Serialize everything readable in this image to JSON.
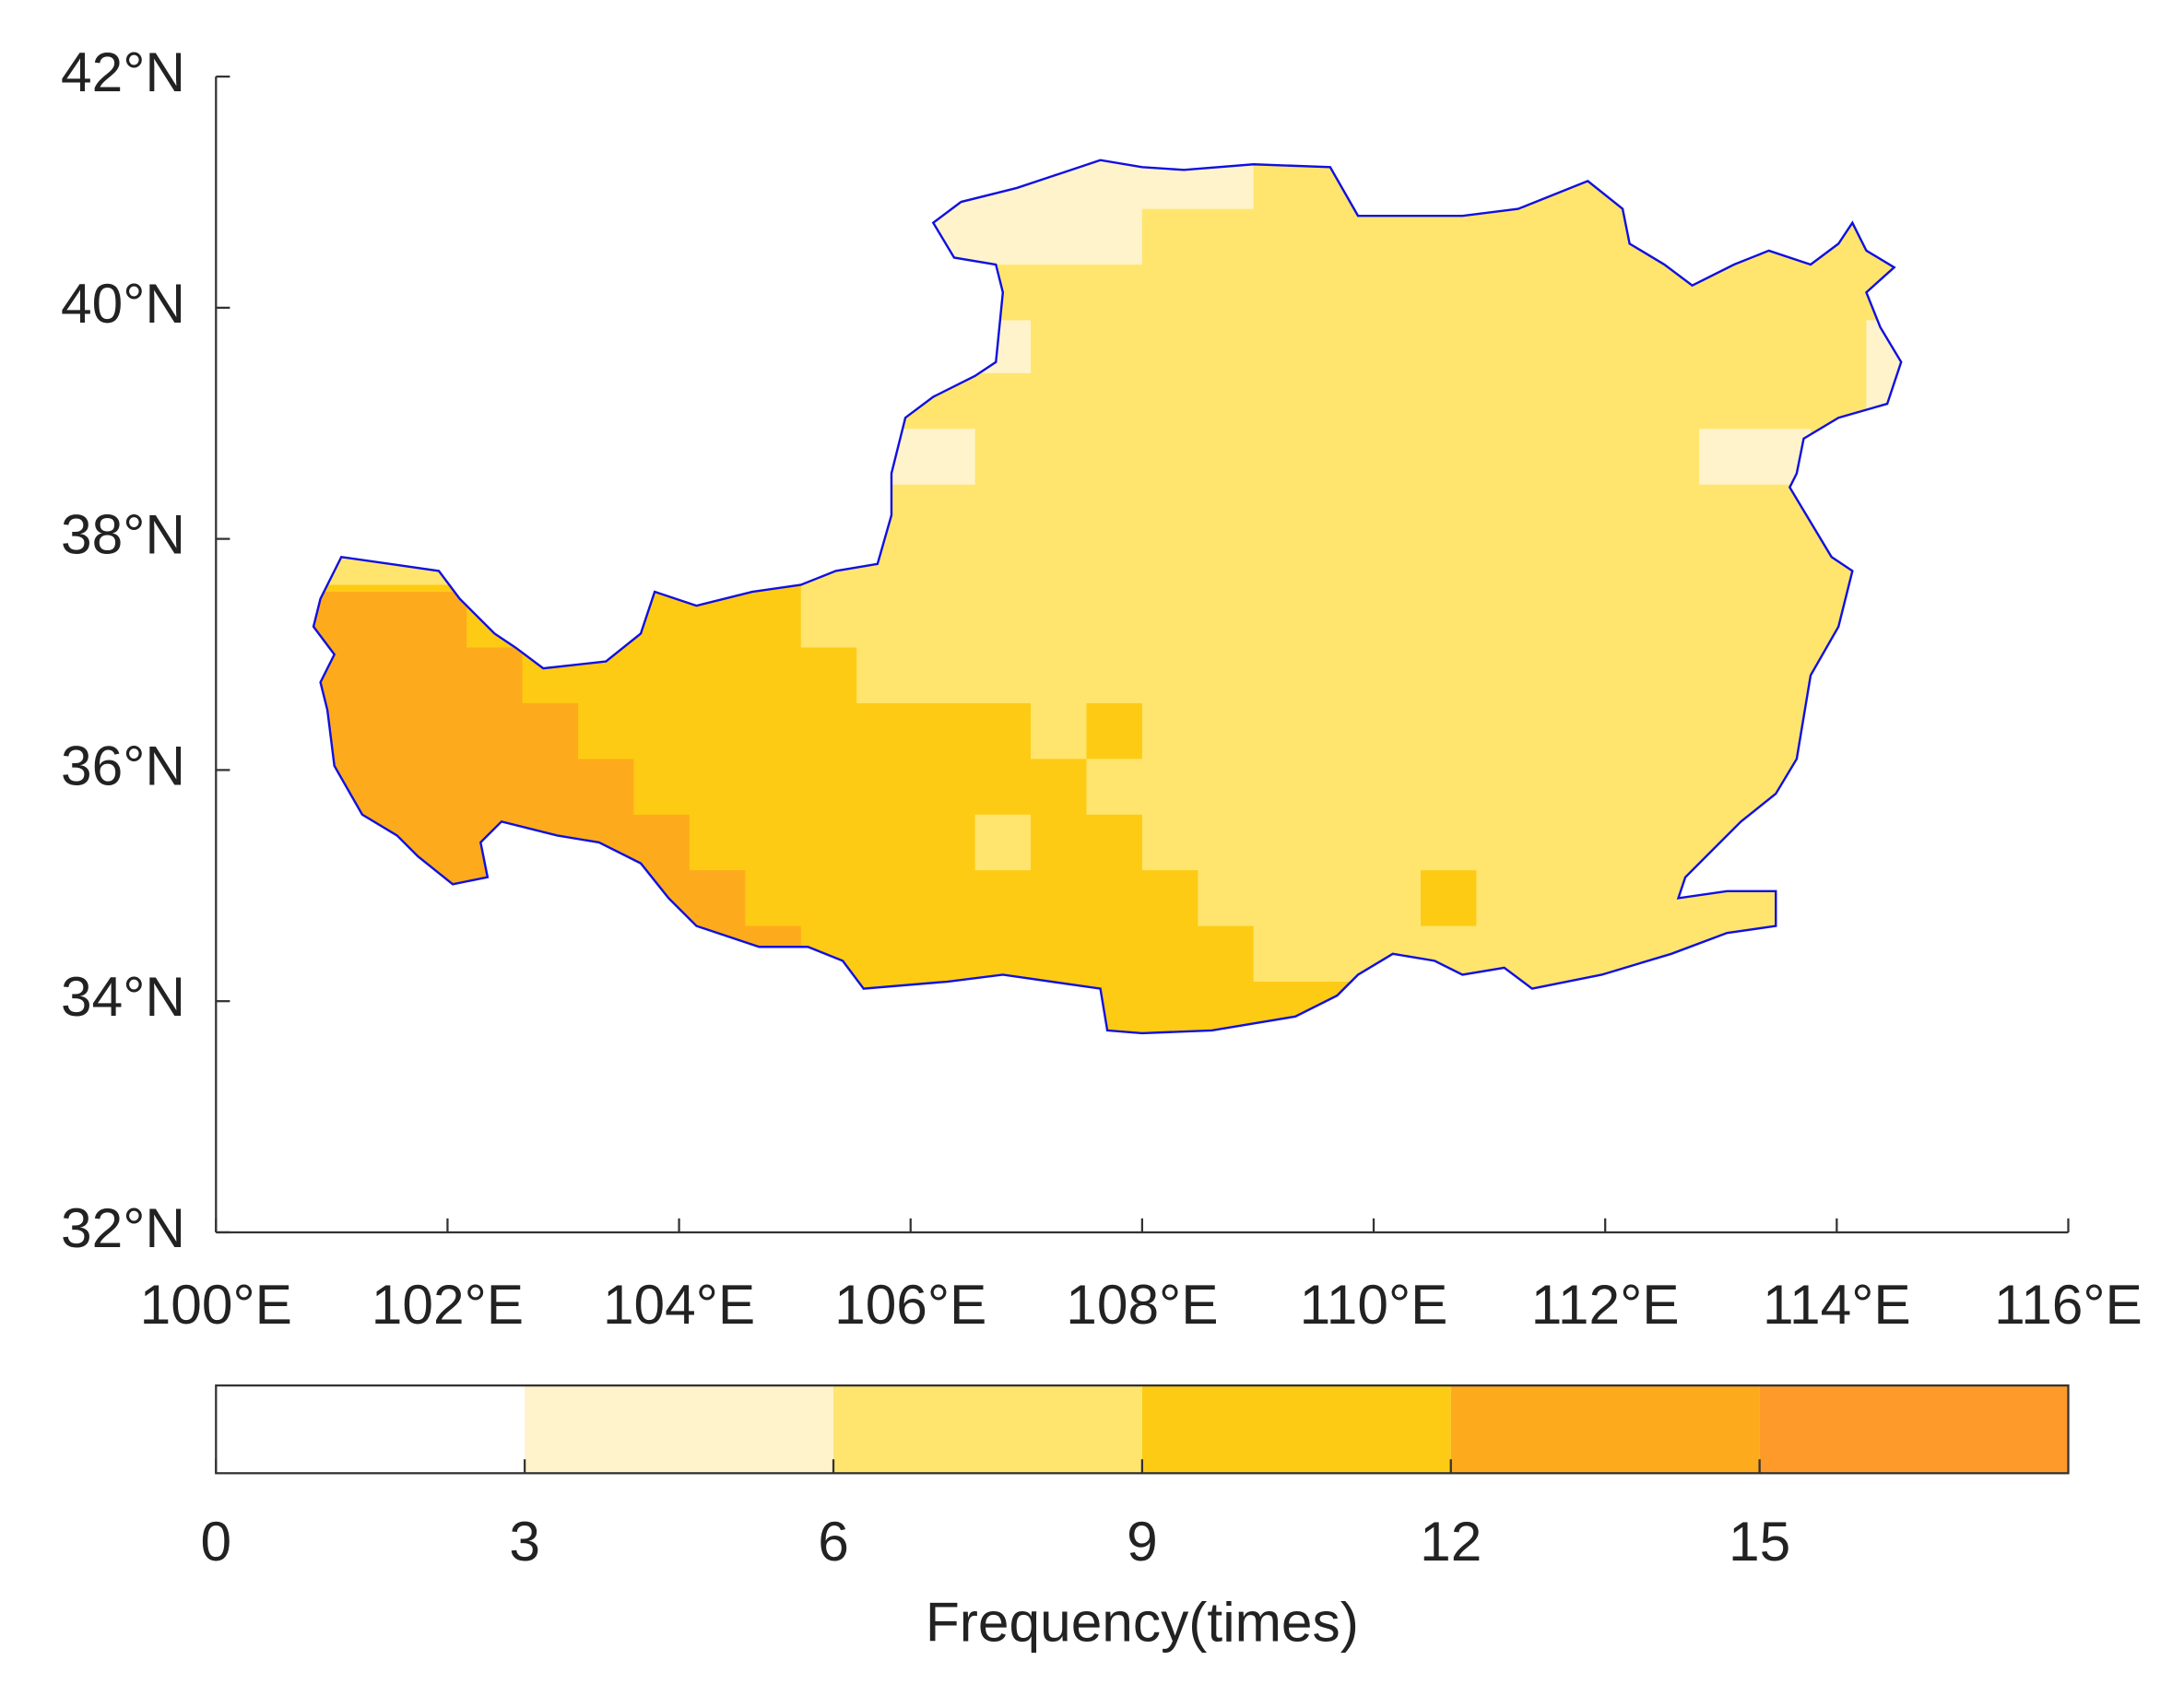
{
  "map": {
    "lat_ticks": [
      {
        "value": 32,
        "label": "32°N"
      },
      {
        "value": 34,
        "label": "34°N"
      },
      {
        "value": 36,
        "label": "36°N"
      },
      {
        "value": 38,
        "label": "38°N"
      },
      {
        "value": 40,
        "label": "40°N"
      },
      {
        "value": 42,
        "label": "42°N"
      }
    ],
    "lon_ticks": [
      {
        "value": 100,
        "label": "100°E"
      },
      {
        "value": 102,
        "label": "102°E"
      },
      {
        "value": 104,
        "label": "104°E"
      },
      {
        "value": 106,
        "label": "106°E"
      },
      {
        "value": 108,
        "label": "108°E"
      },
      {
        "value": 110,
        "label": "110°E"
      },
      {
        "value": 112,
        "label": "112°E"
      },
      {
        "value": 114,
        "label": "114°E"
      },
      {
        "value": 116,
        "label": "116°E"
      }
    ],
    "lat_range": [
      32,
      42
    ],
    "lon_range": [
      100,
      116
    ],
    "colorbar": {
      "label": "Frequency(times)",
      "range": [
        0,
        18
      ],
      "ticks": [
        0,
        3,
        6,
        9,
        12,
        15
      ],
      "colors": [
        "#ffffff",
        "#fff3cc",
        "#ffe56e",
        "#fecb14",
        "#fdab1c",
        "#fd9a2a"
      ]
    }
  }
}
